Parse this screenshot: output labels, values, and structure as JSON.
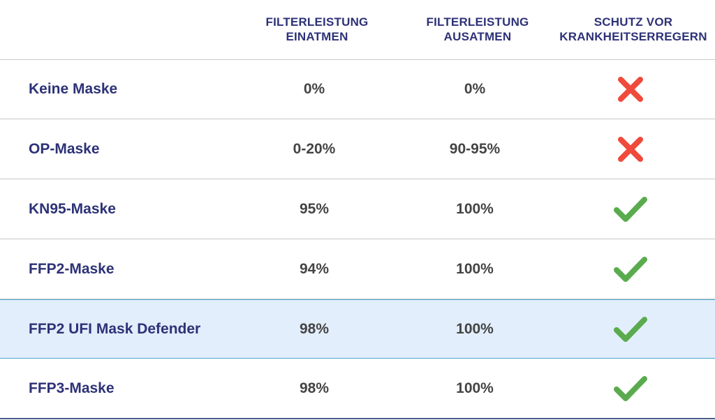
{
  "header": {
    "col1": [
      "FILTERLEISTUNG",
      "EINATMEN"
    ],
    "col2": [
      "FILTERLEISTUNG",
      "AUSATMEN"
    ],
    "col3": [
      "SCHUTZ VOR",
      "KRANKHEITSERREGERN"
    ]
  },
  "colors": {
    "cross": "#ef4a3c",
    "check": "#5aab4e",
    "heading": "#2d3277",
    "highlight_bg": "#e2eefb",
    "highlight_border": "#49a6cf"
  },
  "rows": [
    {
      "name": "Keine Maske",
      "inhale": "0%",
      "exhale": "0%",
      "protection": "cross-icon"
    },
    {
      "name": "OP-Maske",
      "inhale": "0-20%",
      "exhale": "90-95%",
      "protection": "cross-icon"
    },
    {
      "name": "KN95-Maske",
      "inhale": "95%",
      "exhale": "100%",
      "protection": "check-icon"
    },
    {
      "name": "FFP2-Maske",
      "inhale": "94%",
      "exhale": "100%",
      "protection": "check-icon"
    },
    {
      "name": "FFP2 UFI Mask Defender",
      "inhale": "98%",
      "exhale": "100%",
      "protection": "check-icon"
    },
    {
      "name": "FFP3-Maske",
      "inhale": "98%",
      "exhale": "100%",
      "protection": "check-icon"
    }
  ]
}
